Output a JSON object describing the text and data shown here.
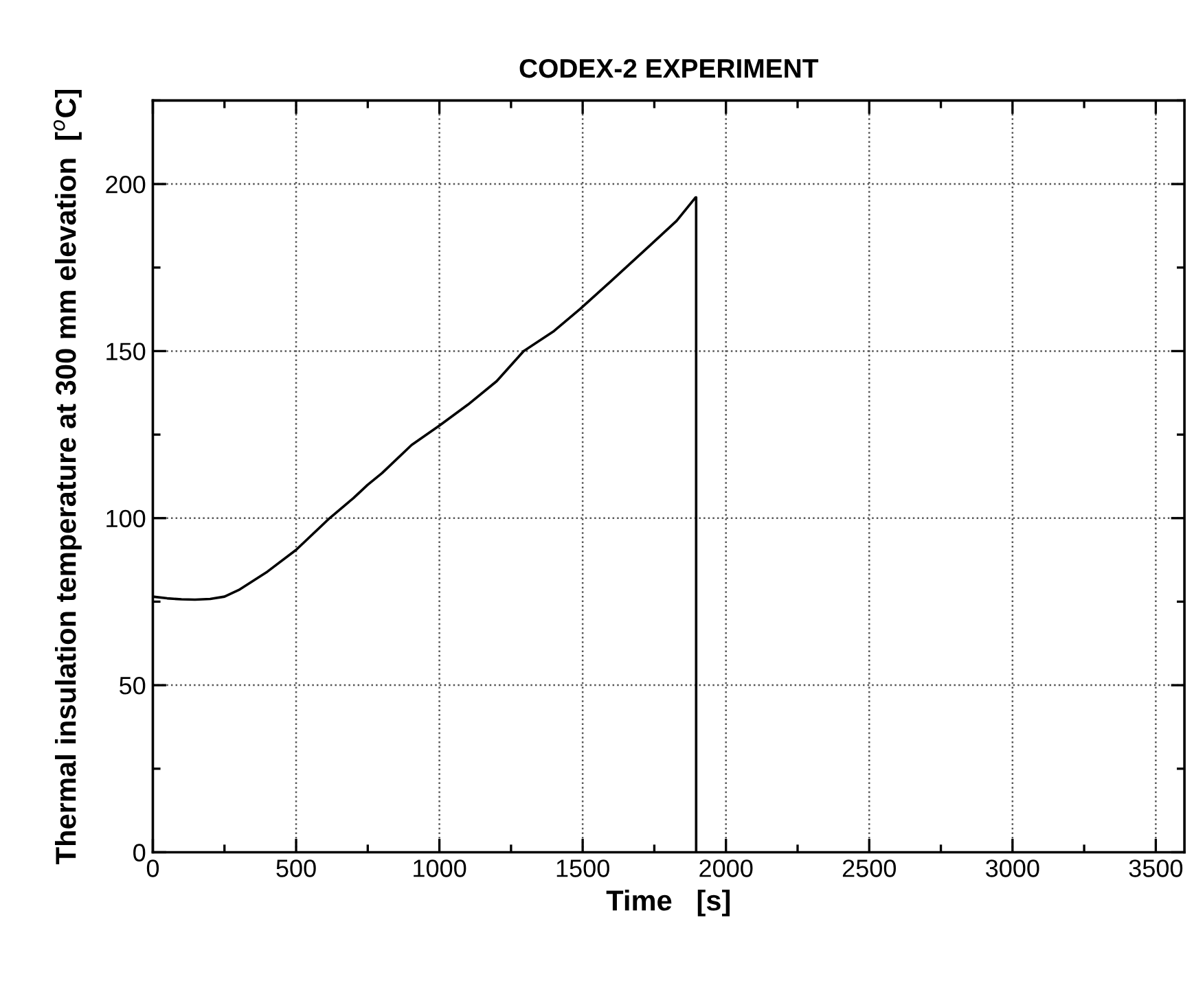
{
  "chart_data": {
    "type": "line",
    "title": "CODEX-2 EXPERIMENT",
    "xlabel": "Time   [s]",
    "ylabel": "Thermal insulation temperature at 300 mm elevation  [$^{o}$C]",
    "series": [
      {
        "color": "#000000",
        "x": [
          0,
          50,
          100,
          147,
          200,
          250,
          300,
          400,
          500,
          617,
          700,
          750,
          800,
          903,
          1000,
          1100,
          1200,
          1294,
          1400,
          1491,
          1600,
          1732,
          1828,
          1893,
          1896,
          1896
        ],
        "values": [
          76.5,
          76.0,
          75.7,
          75.6,
          75.8,
          76.5,
          78.5,
          84,
          90.5,
          100,
          106,
          110,
          113.5,
          121.9,
          127.7,
          134,
          141,
          150,
          156,
          162.6,
          171,
          181.4,
          189,
          195.9,
          196,
          0
        ]
      }
    ],
    "xlim": [
      0,
      3600
    ],
    "ylim": [
      0,
      225
    ],
    "xticks": [
      0,
      500,
      1000,
      1500,
      2000,
      2500,
      3000,
      3500
    ],
    "yticks": [
      0,
      50,
      100,
      150,
      200
    ],
    "grid": true,
    "line_style": "solid",
    "marker": "none"
  }
}
